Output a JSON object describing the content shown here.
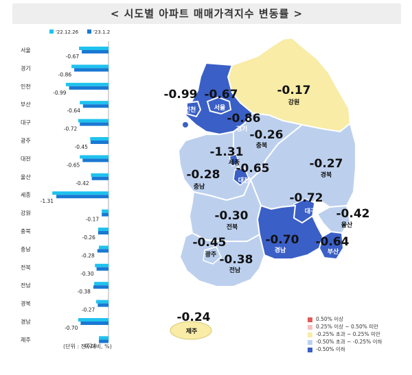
{
  "title": "< 시도별 아파트 매매가격지수 변동률 >",
  "unit_note": "(단위 : 전주대비, %)",
  "colors": {
    "prev_series": "#1fc2ee",
    "curr_series": "#1a78d2",
    "very_low": "#3a5fc6",
    "low": "#bcd0ee",
    "flat": "#f8eca6",
    "up_small": "#f4c2c2",
    "up": "#e05a5a",
    "sea": "#ffffff",
    "border": "#ffffff"
  },
  "chart_data": {
    "type": "bar",
    "orientation": "horizontal",
    "categories": [
      "서울",
      "경기",
      "인천",
      "부산",
      "대구",
      "광주",
      "대전",
      "울산",
      "세종",
      "강원",
      "충북",
      "충남",
      "전북",
      "전남",
      "경북",
      "경남",
      "제주"
    ],
    "series": [
      {
        "name": "'22.12.26",
        "values": [
          -0.74,
          -0.93,
          -1.07,
          -0.72,
          -0.76,
          -0.46,
          -0.72,
          -0.44,
          -1.41,
          -0.17,
          -0.26,
          -0.24,
          -0.34,
          -0.36,
          -0.31,
          -0.76,
          -0.24
        ]
      },
      {
        "name": "'23.1.2",
        "values": [
          -0.67,
          -0.86,
          -0.99,
          -0.64,
          -0.72,
          -0.45,
          -0.65,
          -0.42,
          -1.31,
          -0.17,
          -0.26,
          -0.28,
          -0.3,
          -0.38,
          -0.27,
          -0.7,
          -0.24
        ]
      }
    ],
    "value_labels": [
      "-0.67",
      "-0.86",
      "-0.99",
      "-0.64",
      "-0.72",
      "-0.45",
      "-0.65",
      "-0.42",
      "-1.31",
      "-0.17",
      "-0.26",
      "-0.28",
      "-0.30",
      "-0.38",
      "-0.27",
      "-0.70",
      "-0.24"
    ],
    "xlim": [
      -1.45,
      0
    ]
  },
  "map": {
    "regions": [
      {
        "name": "강원",
        "value": "-0.17",
        "class": "flat"
      },
      {
        "name": "서울",
        "value": "-0.67",
        "class": "very_low"
      },
      {
        "name": "인천",
        "value": "-0.99",
        "class": "very_low"
      },
      {
        "name": "경기",
        "value": "-0.86",
        "class": "very_low"
      },
      {
        "name": "충북",
        "value": "-0.26",
        "class": "low"
      },
      {
        "name": "세종",
        "value": "-1.31",
        "class": "very_low"
      },
      {
        "name": "대전",
        "value": "-0.65",
        "class": "very_low"
      },
      {
        "name": "충남",
        "value": "-0.28",
        "class": "low"
      },
      {
        "name": "경북",
        "value": "-0.27",
        "class": "low"
      },
      {
        "name": "대구",
        "value": "-0.72",
        "class": "very_low"
      },
      {
        "name": "울산",
        "value": "-0.42",
        "class": "low"
      },
      {
        "name": "전북",
        "value": "-0.30",
        "class": "low"
      },
      {
        "name": "경남",
        "value": "-0.70",
        "class": "very_low"
      },
      {
        "name": "부산",
        "value": "-0.64",
        "class": "very_low"
      },
      {
        "name": "광주",
        "value": "-0.45",
        "class": "low"
      },
      {
        "name": "전남",
        "value": "-0.38",
        "class": "low"
      },
      {
        "name": "제주",
        "value": "-0.24",
        "class": "flat"
      }
    ]
  },
  "legend": [
    {
      "label": "0.50% 이상",
      "color": "#e05a5a"
    },
    {
      "label": "0.25% 이상 ~ 0.50% 미만",
      "color": "#f4c2c2"
    },
    {
      "label": "-0.25% 초과 ~ 0.25% 미만",
      "color": "#f8eca6"
    },
    {
      "label": "-0.50% 초과 ~ -0.25% 이하",
      "color": "#bcd0ee"
    },
    {
      "label": "-0.50% 이하",
      "color": "#3a5fc6"
    }
  ]
}
